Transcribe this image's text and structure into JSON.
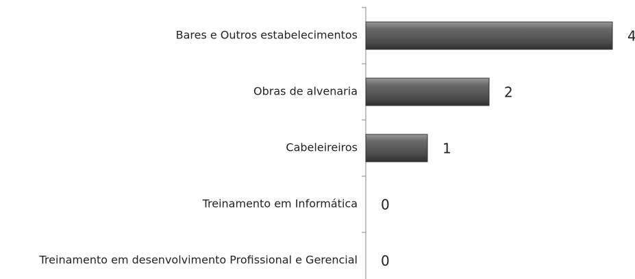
{
  "chart_data": {
    "type": "barh",
    "categories": [
      "Bares e Outros estabelecimentos",
      "Obras de alvenaria",
      "Cabeleireiros",
      "Treinamento em Informática",
      "Treinamento em desenvolvimento Profissional e Gerencial"
    ],
    "values": [
      4,
      2,
      1,
      0,
      0
    ],
    "color": "#555555"
  }
}
